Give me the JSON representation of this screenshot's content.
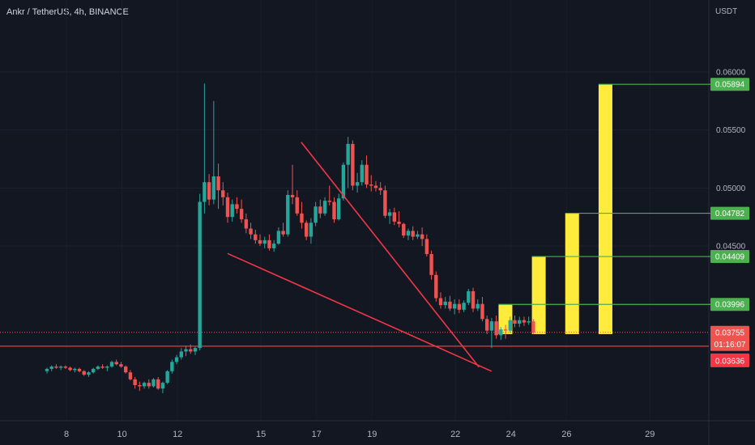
{
  "header": {
    "symbol_line": "Ankr / TetherUS, 4h, BINANCE",
    "currency": "USDT"
  },
  "colors": {
    "background": "#131722",
    "up": "#26a69a",
    "down": "#ef5350",
    "projection_bar": "#ffeb3b",
    "target_line": "#4caf50",
    "pattern_line": "#f23645",
    "axis_text": "#b2b5be"
  },
  "chart_data": {
    "type": "candlestick",
    "ylim": [
      0.0316,
      0.0616
    ],
    "xlim": [
      7.3,
      30.3
    ],
    "y_ticks": [
      "0.06000",
      "0.05500",
      "0.05000",
      "0.04500"
    ],
    "x_ticks": [
      "8",
      "10",
      "12",
      "15",
      "17",
      "19",
      "22",
      "24",
      "26",
      "29"
    ],
    "price_labels": [
      {
        "text": "0.05894",
        "value": 0.05894,
        "kind": "target"
      },
      {
        "text": "0.04782",
        "value": 0.04782,
        "kind": "target"
      },
      {
        "text": "0.04409",
        "value": 0.04409,
        "kind": "target"
      },
      {
        "text": "0.03996",
        "value": 0.03996,
        "kind": "target"
      },
      {
        "text": "0.03755",
        "value": 0.03755,
        "kind": "last"
      },
      {
        "text": "01:16:07",
        "value": 0.03725,
        "kind": "countdown"
      },
      {
        "text": "0.03636",
        "value": 0.03636,
        "kind": "level"
      }
    ],
    "last_price": 0.03755,
    "horizontal_level": 0.03636,
    "projection_bars": [
      {
        "x": 23.8,
        "bottom": 0.0374,
        "top": 0.03996
      },
      {
        "x": 25.0,
        "bottom": 0.0374,
        "top": 0.04409
      },
      {
        "x": 26.2,
        "bottom": 0.0374,
        "top": 0.04782
      },
      {
        "x": 27.4,
        "bottom": 0.0374,
        "top": 0.05894
      }
    ],
    "trend_lines": [
      {
        "from": [
          13.8,
          0.04435
        ],
        "to": [
          23.3,
          0.0342
        ]
      },
      {
        "from": [
          16.45,
          0.05395
        ],
        "to": [
          22.85,
          0.03455
        ]
      }
    ],
    "candle_x_start": 7.3,
    "candle_step": 0.1667,
    "candles": [
      [
        0.0342,
        0.0345,
        0.034,
        0.0344
      ],
      [
        0.0344,
        0.0347,
        0.0342,
        0.0346
      ],
      [
        0.0346,
        0.0348,
        0.0344,
        0.0345
      ],
      [
        0.0345,
        0.0347,
        0.0343,
        0.0346
      ],
      [
        0.0346,
        0.0347,
        0.0344,
        0.0345
      ],
      [
        0.0345,
        0.0346,
        0.0342,
        0.0343
      ],
      [
        0.0343,
        0.0345,
        0.0341,
        0.0344
      ],
      [
        0.0344,
        0.0345,
        0.0341,
        0.0342
      ],
      [
        0.0342,
        0.0343,
        0.0338,
        0.0339
      ],
      [
        0.0339,
        0.0342,
        0.0337,
        0.0341
      ],
      [
        0.0341,
        0.0345,
        0.034,
        0.0344
      ],
      [
        0.0344,
        0.0347,
        0.0343,
        0.0346
      ],
      [
        0.0346,
        0.0348,
        0.0344,
        0.0345
      ],
      [
        0.0345,
        0.0347,
        0.0342,
        0.0346
      ],
      [
        0.0346,
        0.0351,
        0.0345,
        0.035
      ],
      [
        0.035,
        0.0352,
        0.0347,
        0.0348
      ],
      [
        0.0348,
        0.035,
        0.0345,
        0.0346
      ],
      [
        0.0346,
        0.0347,
        0.034,
        0.0341
      ],
      [
        0.0341,
        0.0343,
        0.0334,
        0.0335
      ],
      [
        0.0335,
        0.0337,
        0.0327,
        0.033
      ],
      [
        0.033,
        0.0333,
        0.0325,
        0.0329
      ],
      [
        0.0329,
        0.0333,
        0.0327,
        0.0332
      ],
      [
        0.0332,
        0.0335,
        0.0327,
        0.0329
      ],
      [
        0.0329,
        0.0336,
        0.0328,
        0.0335
      ],
      [
        0.0335,
        0.0337,
        0.0326,
        0.0327
      ],
      [
        0.0327,
        0.0333,
        0.0323,
        0.0332
      ],
      [
        0.0332,
        0.0343,
        0.0331,
        0.0342
      ],
      [
        0.0342,
        0.0352,
        0.034,
        0.035
      ],
      [
        0.035,
        0.0356,
        0.0348,
        0.0354
      ],
      [
        0.0354,
        0.0362,
        0.0352,
        0.0359
      ],
      [
        0.0359,
        0.0364,
        0.0355,
        0.0361
      ],
      [
        0.0361,
        0.0365,
        0.0357,
        0.0359
      ],
      [
        0.0359,
        0.0363,
        0.0356,
        0.0362
      ],
      [
        0.0362,
        0.0495,
        0.036,
        0.0488
      ],
      [
        0.0488,
        0.059,
        0.0478,
        0.0505
      ],
      [
        0.0505,
        0.0512,
        0.0485,
        0.049
      ],
      [
        0.049,
        0.0575,
        0.0486,
        0.051
      ],
      [
        0.051,
        0.0521,
        0.0482,
        0.0498
      ],
      [
        0.0498,
        0.0505,
        0.0485,
        0.0492
      ],
      [
        0.0492,
        0.0496,
        0.047,
        0.0475
      ],
      [
        0.0475,
        0.049,
        0.0471,
        0.0486
      ],
      [
        0.0486,
        0.0492,
        0.0478,
        0.0482
      ],
      [
        0.0482,
        0.049,
        0.047,
        0.0473
      ],
      [
        0.0473,
        0.0478,
        0.0461,
        0.0465
      ],
      [
        0.0465,
        0.047,
        0.0456,
        0.046
      ],
      [
        0.046,
        0.0464,
        0.0452,
        0.0455
      ],
      [
        0.0455,
        0.046,
        0.045,
        0.0452
      ],
      [
        0.0452,
        0.0458,
        0.0448,
        0.0455
      ],
      [
        0.0455,
        0.046,
        0.0446,
        0.0448
      ],
      [
        0.0448,
        0.0455,
        0.0445,
        0.0452
      ],
      [
        0.0452,
        0.0466,
        0.0451,
        0.0463
      ],
      [
        0.0463,
        0.047,
        0.0458,
        0.046
      ],
      [
        0.046,
        0.0498,
        0.0458,
        0.0494
      ],
      [
        0.0494,
        0.052,
        0.0486,
        0.0492
      ],
      [
        0.0492,
        0.0498,
        0.0476,
        0.0478
      ],
      [
        0.0478,
        0.0488,
        0.0465,
        0.047
      ],
      [
        0.047,
        0.0472,
        0.0455,
        0.0458
      ],
      [
        0.0458,
        0.0474,
        0.0452,
        0.047
      ],
      [
        0.047,
        0.0488,
        0.0467,
        0.0484
      ],
      [
        0.0484,
        0.049,
        0.0474,
        0.0478
      ],
      [
        0.0478,
        0.0492,
        0.0476,
        0.0489
      ],
      [
        0.0489,
        0.0502,
        0.0485,
        0.0488
      ],
      [
        0.0488,
        0.0492,
        0.047,
        0.0473
      ],
      [
        0.0473,
        0.0495,
        0.0472,
        0.0491
      ],
      [
        0.0491,
        0.0522,
        0.0489,
        0.052
      ],
      [
        0.052,
        0.0544,
        0.05,
        0.0538
      ],
      [
        0.0538,
        0.0541,
        0.0498,
        0.0502
      ],
      [
        0.0502,
        0.0513,
        0.0496,
        0.0505
      ],
      [
        0.0505,
        0.0524,
        0.0502,
        0.052
      ],
      [
        0.052,
        0.0528,
        0.05,
        0.0503
      ],
      [
        0.0503,
        0.0511,
        0.0497,
        0.0502
      ],
      [
        0.0502,
        0.0506,
        0.0497,
        0.05
      ],
      [
        0.05,
        0.0505,
        0.0494,
        0.0498
      ],
      [
        0.0498,
        0.0502,
        0.0474,
        0.0476
      ],
      [
        0.0476,
        0.0482,
        0.0469,
        0.0479
      ],
      [
        0.0479,
        0.0483,
        0.0468,
        0.0471
      ],
      [
        0.0471,
        0.048,
        0.0466,
        0.0469
      ],
      [
        0.0469,
        0.047,
        0.0457,
        0.0459
      ],
      [
        0.0459,
        0.0465,
        0.0455,
        0.0463
      ],
      [
        0.0463,
        0.0467,
        0.0455,
        0.0458
      ],
      [
        0.0458,
        0.0463,
        0.0456,
        0.046
      ],
      [
        0.046,
        0.0466,
        0.045,
        0.0456
      ],
      [
        0.0456,
        0.046,
        0.0441,
        0.0443
      ],
      [
        0.0443,
        0.0446,
        0.0421,
        0.0425
      ],
      [
        0.0425,
        0.0428,
        0.0402,
        0.0405
      ],
      [
        0.0405,
        0.041,
        0.0396,
        0.0399
      ],
      [
        0.0399,
        0.0406,
        0.0396,
        0.0402
      ],
      [
        0.0402,
        0.0407,
        0.0394,
        0.0396
      ],
      [
        0.0396,
        0.0404,
        0.0391,
        0.04
      ],
      [
        0.04,
        0.0404,
        0.0392,
        0.0395
      ],
      [
        0.0395,
        0.0403,
        0.0393,
        0.0401
      ],
      [
        0.0401,
        0.0413,
        0.0399,
        0.0411
      ],
      [
        0.0411,
        0.0414,
        0.0393,
        0.0396
      ],
      [
        0.0396,
        0.0404,
        0.0394,
        0.04
      ],
      [
        0.04,
        0.0406,
        0.0385,
        0.0387
      ],
      [
        0.0387,
        0.039,
        0.0374,
        0.0377
      ],
      [
        0.0377,
        0.0388,
        0.0362,
        0.0385
      ],
      [
        0.0385,
        0.039,
        0.037,
        0.0373
      ],
      [
        0.0373,
        0.038,
        0.0369,
        0.0378
      ],
      [
        0.0378,
        0.0382,
        0.037,
        0.0377
      ],
      [
        0.0377,
        0.0389,
        0.0375,
        0.0386
      ],
      [
        0.0386,
        0.039,
        0.038,
        0.0383
      ],
      [
        0.0383,
        0.0389,
        0.038,
        0.0386
      ],
      [
        0.0386,
        0.0389,
        0.0381,
        0.0384
      ],
      [
        0.0384,
        0.0389,
        0.0382,
        0.0385
      ],
      [
        0.0385,
        0.0387,
        0.0374,
        0.03755
      ]
    ]
  }
}
